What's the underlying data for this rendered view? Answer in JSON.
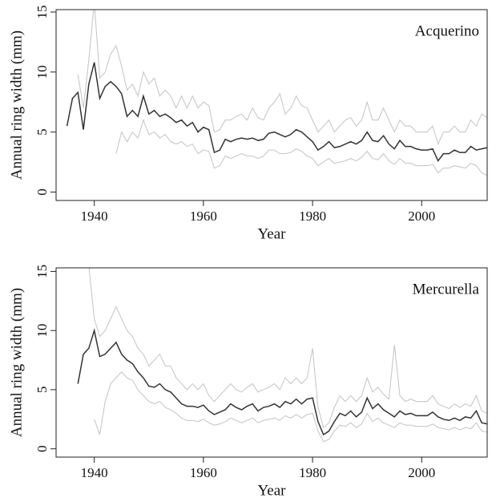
{
  "chart_data": [
    {
      "type": "line",
      "annotation": "Acquerino",
      "xlabel": "Year",
      "ylabel": "Annual ring width (mm)",
      "x": [
        1935,
        1936,
        1937,
        1938,
        1939,
        1940,
        1941,
        1942,
        1943,
        1944,
        1945,
        1946,
        1947,
        1948,
        1949,
        1950,
        1951,
        1952,
        1953,
        1954,
        1955,
        1956,
        1957,
        1958,
        1959,
        1960,
        1961,
        1962,
        1963,
        1964,
        1965,
        1966,
        1967,
        1968,
        1969,
        1970,
        1971,
        1972,
        1973,
        1974,
        1975,
        1976,
        1977,
        1978,
        1979,
        1980,
        1981,
        1982,
        1983,
        1984,
        1985,
        1986,
        1987,
        1988,
        1989,
        1990,
        1991,
        1992,
        1993,
        1994,
        1995,
        1996,
        1997,
        1998,
        1999,
        2000,
        2001,
        2002,
        2003,
        2004,
        2005,
        2006,
        2007,
        2008,
        2009,
        2010,
        2011,
        2012
      ],
      "series": [
        {
          "color": "#333333",
          "values": [
            5.5,
            7.8,
            8.3,
            5.2,
            9,
            10.8,
            7.8,
            8.8,
            9.2,
            8.8,
            8.2,
            6.3,
            6.8,
            6.3,
            8,
            6.5,
            6.8,
            6.3,
            6.5,
            6.2,
            5.8,
            6,
            5.5,
            5.8,
            5,
            5.4,
            5.2,
            3.3,
            3.5,
            4.4,
            4.2,
            4.4,
            4.5,
            4.4,
            4.5,
            4.3,
            4.4,
            4.9,
            5,
            4.8,
            4.6,
            4.8,
            5.2,
            5,
            4.6,
            4.2,
            3.5,
            3.8,
            4.2,
            3.7,
            3.8,
            4,
            4.2,
            4,
            4.3,
            5,
            4.3,
            4.2,
            4.7,
            4,
            3.6,
            4.3,
            3.8,
            3.8,
            3.6,
            3.5,
            3.5,
            3.6,
            2.6,
            3.2,
            3.2,
            3.5,
            3.3,
            3.3,
            3.8,
            3.5,
            3.6,
            3.7
          ]
        },
        {
          "color": "#c8c8c8",
          "values": [
            null,
            null,
            9.8,
            7,
            11,
            15.8,
            9.5,
            10,
            11.5,
            12.2,
            10.5,
            8.5,
            9,
            8,
            10,
            9,
            9.5,
            8,
            8.5,
            8,
            7,
            8,
            7,
            8,
            7,
            7.5,
            7.2,
            5,
            5.2,
            6,
            6,
            6.3,
            6.5,
            6,
            7,
            6.2,
            6,
            7,
            7.5,
            8.2,
            6.5,
            7,
            8,
            7.2,
            7,
            6,
            5,
            5.5,
            6,
            5,
            5.5,
            6,
            6.2,
            5.5,
            6,
            7.5,
            6,
            6,
            7,
            6,
            5,
            6,
            5.5,
            5.5,
            5,
            5,
            5,
            5.5,
            4,
            5,
            5,
            5.5,
            5,
            5,
            6,
            5.5,
            6.5,
            6.2
          ]
        },
        {
          "color": "#c8c8c8",
          "values": [
            null,
            null,
            null,
            null,
            null,
            null,
            null,
            null,
            null,
            3.2,
            5,
            4.2,
            5,
            4.5,
            6,
            4.8,
            5,
            4.5,
            4.8,
            4.2,
            4,
            4.2,
            3.8,
            4,
            3.2,
            3.5,
            3.4,
            2,
            2.2,
            3,
            2.8,
            3,
            3.2,
            3,
            3,
            2.8,
            3,
            3.5,
            3.5,
            3.2,
            3.2,
            3.3,
            3.6,
            3.4,
            3,
            2.8,
            2.2,
            2.5,
            2.8,
            2.4,
            2.5,
            2.6,
            2.8,
            2.6,
            2.9,
            3.4,
            2.8,
            2.7,
            3.2,
            2.6,
            2.3,
            2.8,
            2.4,
            2.4,
            2.2,
            2.2,
            2.2,
            2.3,
            1.6,
            2,
            2,
            2.2,
            2.1,
            2,
            2.4,
            2.2,
            1.6,
            1.4
          ]
        }
      ],
      "xlim": [
        1933,
        2012
      ],
      "ylim": [
        -0.7,
        15.2
      ],
      "xticks": [
        1940,
        1960,
        1980,
        2000
      ],
      "yticks": [
        0,
        5,
        10,
        15
      ]
    },
    {
      "type": "line",
      "annotation": "Mercurella",
      "xlabel": "Year",
      "ylabel": "Annual ring width (mm)",
      "x": [
        1937,
        1938,
        1939,
        1940,
        1941,
        1942,
        1943,
        1944,
        1945,
        1946,
        1947,
        1948,
        1949,
        1950,
        1951,
        1952,
        1953,
        1954,
        1955,
        1956,
        1957,
        1958,
        1959,
        1960,
        1961,
        1962,
        1963,
        1964,
        1965,
        1966,
        1967,
        1968,
        1969,
        1970,
        1971,
        1972,
        1973,
        1974,
        1975,
        1976,
        1977,
        1978,
        1979,
        1980,
        1981,
        1982,
        1983,
        1984,
        1985,
        1986,
        1987,
        1988,
        1989,
        1990,
        1991,
        1992,
        1993,
        1994,
        1995,
        1996,
        1997,
        1998,
        1999,
        2000,
        2001,
        2002,
        2003,
        2004,
        2005,
        2006,
        2007,
        2008,
        2009,
        2010,
        2011,
        2012
      ],
      "series": [
        {
          "color": "#333333",
          "values": [
            5.5,
            8,
            8.5,
            10,
            7.8,
            8,
            8.5,
            9,
            8,
            7.5,
            7.2,
            6.5,
            6,
            5.3,
            5.2,
            5.5,
            5,
            4.8,
            4.3,
            3.8,
            3.6,
            3.6,
            3.5,
            3.7,
            3.2,
            2.9,
            3.1,
            3.3,
            3.8,
            3.5,
            3.3,
            3.6,
            3.8,
            3.2,
            3.5,
            3.6,
            3.8,
            3.5,
            4,
            3.8,
            4.2,
            3.8,
            4.2,
            4.3,
            2.3,
            1.2,
            1.5,
            2.3,
            3,
            2.8,
            3.2,
            2.7,
            3.1,
            4.3,
            3.4,
            3.8,
            3.3,
            3,
            2.7,
            3.2,
            2.9,
            3,
            2.8,
            2.8,
            2.8,
            3.1,
            2.7,
            2.5,
            2.4,
            2.6,
            2.4,
            2.7,
            2.6,
            3.2,
            2.2,
            2.1
          ]
        },
        {
          "color": "#c8c8c8",
          "values": [
            null,
            null,
            15.5,
            11,
            9.5,
            10,
            11,
            12,
            11,
            10,
            9.5,
            8.5,
            8,
            7,
            7.5,
            8,
            7,
            7,
            6,
            5.5,
            5,
            5.5,
            5,
            5.5,
            4.5,
            4,
            4.5,
            5,
            5.5,
            5,
            4.8,
            5.2,
            5.5,
            4.8,
            5,
            5.2,
            5.5,
            5,
            6,
            5.5,
            6,
            5.5,
            6,
            8.5,
            3.5,
            1.8,
            2.2,
            3.5,
            4.5,
            4,
            4.5,
            4,
            4.5,
            6,
            4.8,
            5.2,
            4.6,
            4.2,
            8.8,
            4.5,
            4,
            4.2,
            4,
            4,
            4,
            4.5,
            3.8,
            3.6,
            3.4,
            3.8,
            3.5,
            3.8,
            3.6,
            4.5,
            3.2,
            3
          ]
        },
        {
          "color": "#c8c8c8",
          "values": [
            null,
            null,
            null,
            2.5,
            1.2,
            4,
            5.5,
            6,
            6.5,
            6,
            5.8,
            5,
            4.5,
            4,
            3.8,
            4,
            3.5,
            3.3,
            3,
            2.6,
            2.4,
            2.4,
            2.3,
            2.5,
            2.2,
            2,
            2.1,
            2.3,
            2.6,
            2.4,
            2.2,
            2.4,
            2.6,
            2.2,
            2.4,
            2.5,
            2.6,
            2.4,
            2.8,
            2.6,
            2.9,
            2.6,
            2.9,
            3,
            1.5,
            0.6,
            0.8,
            1.5,
            2,
            1.9,
            2.2,
            1.8,
            2.1,
            3,
            2.3,
            2.6,
            2.2,
            2,
            1.8,
            2.2,
            2,
            2,
            1.9,
            1.9,
            1.9,
            2.1,
            1.8,
            1.7,
            1.6,
            1.8,
            1.6,
            1.8,
            1.7,
            2.2,
            1.5,
            1.4
          ]
        }
      ],
      "xlim": [
        1933,
        2012
      ],
      "ylim": [
        -0.7,
        15.3
      ],
      "xticks": [
        1940,
        1960,
        1980,
        2000
      ],
      "yticks": [
        0,
        5,
        10,
        15
      ]
    }
  ]
}
